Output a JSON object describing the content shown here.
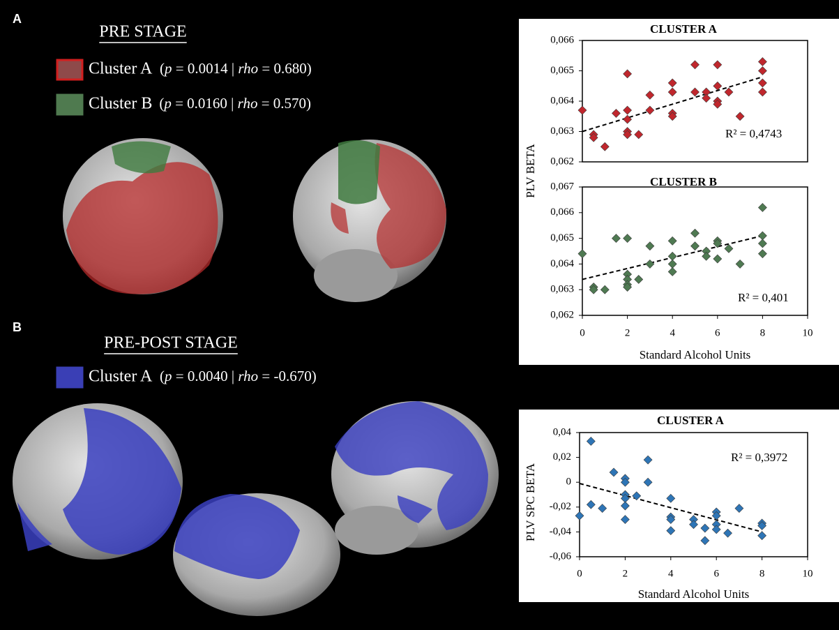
{
  "panels": [
    {
      "label": "A",
      "title": "PRE STAGE",
      "legend": [
        {
          "name": "Cluster A",
          "color": "#8e4a4a",
          "border": "#d11f1f",
          "parts": [
            "(",
            "p",
            " = 0.0014 | ",
            "rho",
            " = 0.680)"
          ]
        },
        {
          "name": "Cluster B",
          "color": "#4f7a4f",
          "border": "#4f7a4f",
          "parts": [
            "(",
            "p",
            " = 0.0160 | ",
            "rho",
            " = 0.570)"
          ]
        }
      ]
    },
    {
      "label": "B",
      "title": "PRE-POST STAGE",
      "legend": [
        {
          "name": "Cluster A",
          "color": "#3a3fb5",
          "border": "#3a3fb5",
          "parts": [
            "(",
            "p",
            " = 0.0040 | ",
            "rho",
            " = -0.670)"
          ]
        }
      ]
    }
  ],
  "chart_data": [
    {
      "type": "scatter",
      "title": "CLUSTER A",
      "ylabel": "PLV BETA",
      "color": "#c0272d",
      "x": [
        0,
        0.5,
        0.5,
        1,
        1.5,
        2,
        2,
        2,
        2,
        2,
        2.5,
        3,
        3,
        4,
        4,
        4,
        4,
        5,
        5,
        5.5,
        5.5,
        6,
        6,
        6,
        6,
        6.5,
        7,
        8,
        8,
        8,
        8
      ],
      "y": [
        0.0637,
        0.0629,
        0.0628,
        0.0625,
        0.0636,
        0.0649,
        0.0637,
        0.0634,
        0.063,
        0.0629,
        0.0629,
        0.0642,
        0.0637,
        0.0646,
        0.0643,
        0.0636,
        0.0635,
        0.0652,
        0.0643,
        0.0643,
        0.0641,
        0.0652,
        0.0645,
        0.064,
        0.0639,
        0.0643,
        0.0635,
        0.0653,
        0.065,
        0.0646,
        0.0643
      ],
      "trend": {
        "x": [
          0,
          8
        ],
        "y": [
          0.063,
          0.0648
        ]
      },
      "annotation": "R² = 0,4743",
      "xlim": [
        0,
        10
      ],
      "ylim": [
        0.062,
        0.066
      ],
      "yticks": [
        {
          "value": 0.062,
          "label": "0,062"
        },
        {
          "value": 0.063,
          "label": "0,063"
        },
        {
          "value": 0.064,
          "label": "0,064"
        },
        {
          "value": 0.065,
          "label": "0,065"
        },
        {
          "value": 0.066,
          "label": "0,066"
        }
      ]
    },
    {
      "type": "scatter",
      "title": "CLUSTER B",
      "xlabel": "Standard Alcohol Units",
      "color": "#4f7a52",
      "x": [
        0,
        0.5,
        0.5,
        1,
        1.5,
        2,
        2,
        2,
        2,
        2,
        2.5,
        3,
        3,
        4,
        4,
        4,
        4,
        5,
        5,
        5.5,
        5.5,
        6,
        6,
        6,
        6.5,
        7,
        8,
        8,
        8,
        8
      ],
      "y": [
        0.0644,
        0.0631,
        0.063,
        0.063,
        0.065,
        0.065,
        0.0636,
        0.0634,
        0.0632,
        0.0631,
        0.0634,
        0.0647,
        0.064,
        0.0649,
        0.0643,
        0.064,
        0.0637,
        0.0652,
        0.0647,
        0.0645,
        0.0643,
        0.0649,
        0.0648,
        0.0642,
        0.0646,
        0.064,
        0.0662,
        0.0651,
        0.0648,
        0.0644
      ],
      "trend": {
        "x": [
          0,
          8
        ],
        "y": [
          0.0634,
          0.0651
        ]
      },
      "annotation": "R² = 0,401",
      "xlim": [
        0,
        10
      ],
      "xticks": [
        0,
        2,
        4,
        6,
        8,
        10
      ],
      "ylim": [
        0.062,
        0.067
      ],
      "yticks": [
        {
          "value": 0.062,
          "label": "0,062"
        },
        {
          "value": 0.063,
          "label": "0,063"
        },
        {
          "value": 0.064,
          "label": "0,064"
        },
        {
          "value": 0.065,
          "label": "0,065"
        },
        {
          "value": 0.066,
          "label": "0,066"
        },
        {
          "value": 0.067,
          "label": "0,067"
        }
      ]
    },
    {
      "type": "scatter",
      "title": "CLUSTER A",
      "ylabel": "PLV SPC BETA",
      "xlabel": "Standard Alcohol Units",
      "color": "#2e75b6",
      "x": [
        0,
        0.5,
        0.5,
        1,
        1.5,
        2,
        2,
        2,
        2,
        2,
        2,
        2.5,
        3,
        3,
        4,
        4,
        4,
        4,
        5,
        5,
        5.5,
        5.5,
        6,
        6,
        6,
        6,
        6.5,
        7,
        8,
        8,
        8
      ],
      "y": [
        -0.027,
        0.033,
        -0.018,
        -0.021,
        0.008,
        0.003,
        0.0,
        -0.01,
        -0.013,
        -0.019,
        -0.03,
        -0.011,
        0.018,
        0.0,
        -0.013,
        -0.028,
        -0.03,
        -0.039,
        -0.03,
        -0.034,
        -0.037,
        -0.047,
        -0.024,
        -0.027,
        -0.034,
        -0.038,
        -0.041,
        -0.021,
        -0.033,
        -0.035,
        -0.043
      ],
      "trend": {
        "x": [
          0,
          8
        ],
        "y": [
          -0.001,
          -0.04
        ]
      },
      "annotation": "R² = 0,3972",
      "xlim": [
        0,
        10
      ],
      "xticks": [
        0,
        2,
        4,
        6,
        8,
        10
      ],
      "ylim": [
        -0.06,
        0.04
      ],
      "yticks": [
        {
          "value": -0.06,
          "label": "-0,06"
        },
        {
          "value": -0.04,
          "label": "-0,04"
        },
        {
          "value": -0.02,
          "label": "-0,02"
        },
        0,
        {
          "value": 0.02,
          "label": "0,02"
        },
        {
          "value": 0.04,
          "label": "0,04"
        }
      ]
    }
  ]
}
